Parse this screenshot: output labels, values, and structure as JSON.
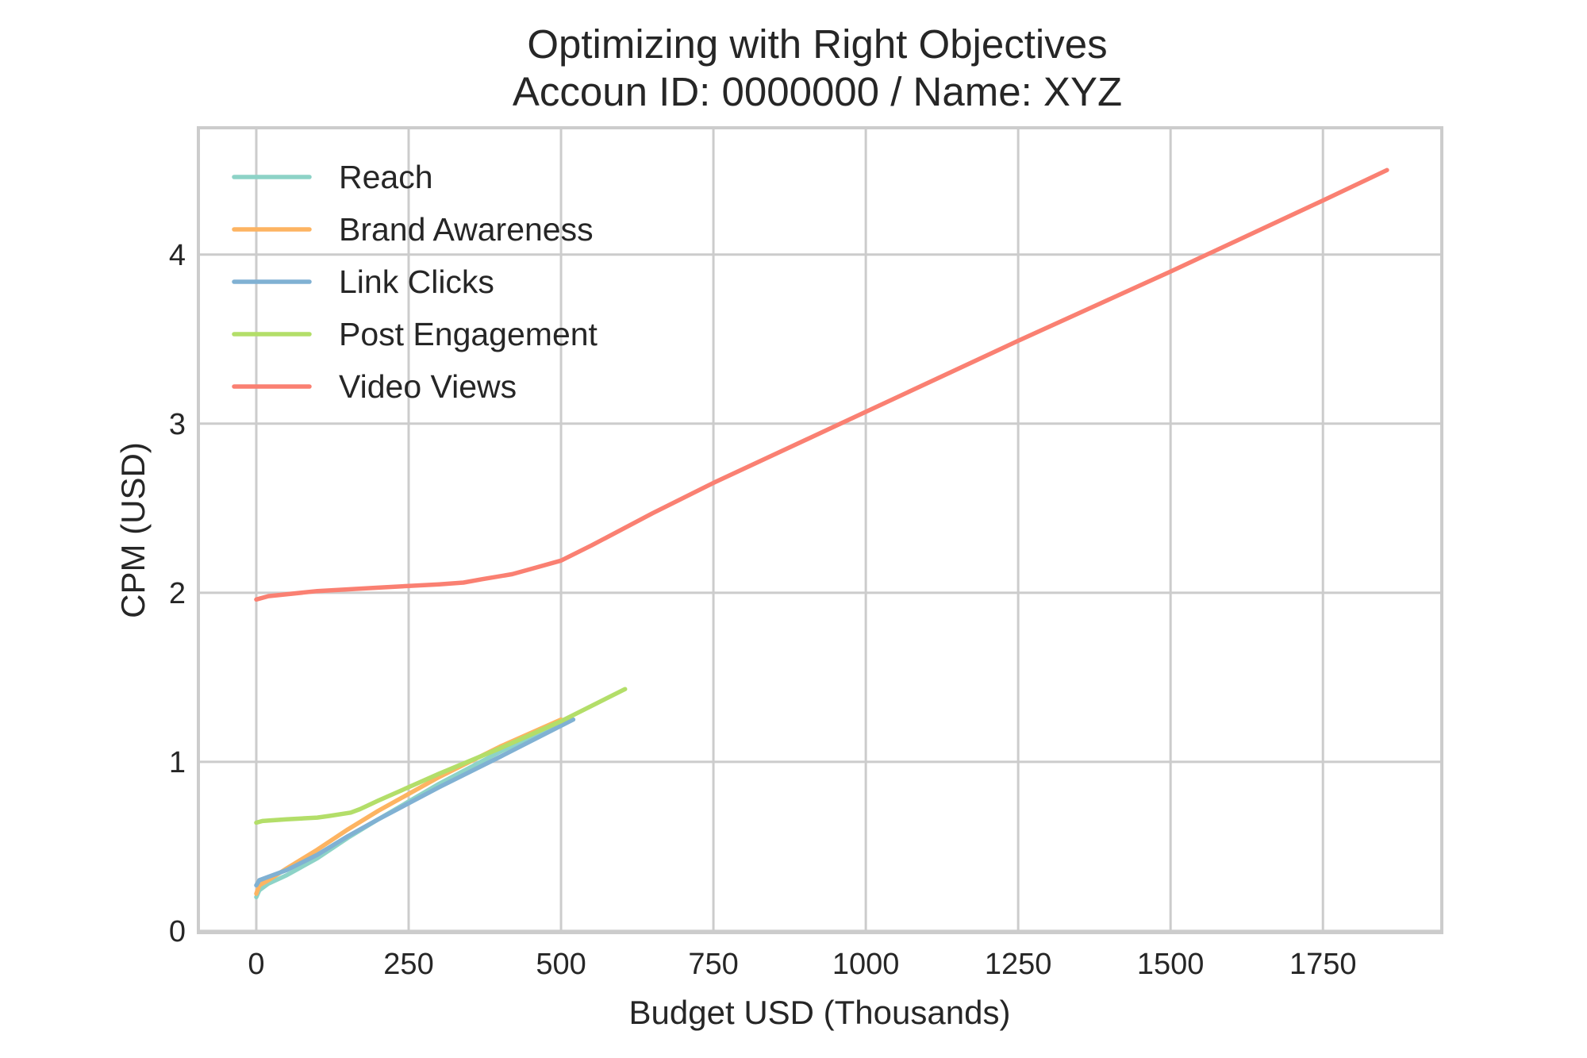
{
  "chart_data": {
    "type": "line",
    "title": "Optimizing with Right Objectives",
    "subtitle": "Accoun ID: 0000000 / Name: XYZ",
    "xlabel": "Budget USD (Thousands)",
    "ylabel": "CPM (USD)",
    "xlim": [
      -95,
      1945
    ],
    "ylim": [
      -0.01,
      4.75
    ],
    "xticks": [
      0,
      250,
      500,
      750,
      1000,
      1250,
      1500,
      1750
    ],
    "xtick_labels": [
      "0",
      "250",
      "500",
      "750",
      "1000",
      "1250",
      "1500",
      "1750"
    ],
    "yticks": [
      0,
      1,
      2,
      3,
      4
    ],
    "ytick_labels": [
      "0",
      "1",
      "2",
      "3",
      "4"
    ],
    "grid": true,
    "legend_position": "top-left",
    "series": [
      {
        "name": "Reach",
        "color": "#8dd3c7",
        "x": [
          0,
          5,
          20,
          50,
          100,
          150,
          200,
          300,
          400,
          500
        ],
        "y": [
          0.2,
          0.24,
          0.28,
          0.33,
          0.43,
          0.55,
          0.66,
          0.87,
          1.06,
          1.23
        ]
      },
      {
        "name": "Brand Awareness",
        "color": "#fdb462",
        "x": [
          0,
          5,
          20,
          50,
          100,
          150,
          200,
          300,
          400,
          500
        ],
        "y": [
          0.22,
          0.27,
          0.3,
          0.37,
          0.48,
          0.6,
          0.71,
          0.91,
          1.09,
          1.25
        ]
      },
      {
        "name": "Link Clicks",
        "color": "#80b1d3",
        "x": [
          0,
          5,
          20,
          50,
          100,
          150,
          200,
          300,
          400,
          520
        ],
        "y": [
          0.27,
          0.3,
          0.32,
          0.36,
          0.45,
          0.56,
          0.66,
          0.85,
          1.03,
          1.25
        ]
      },
      {
        "name": "Post Engagement",
        "color": "#b3de69",
        "x": [
          0,
          10,
          50,
          100,
          120,
          155,
          170,
          200,
          300,
          400,
          500,
          605
        ],
        "y": [
          0.64,
          0.65,
          0.66,
          0.67,
          0.68,
          0.7,
          0.72,
          0.77,
          0.93,
          1.08,
          1.24,
          1.43
        ]
      },
      {
        "name": "Video Views",
        "color": "#fa8072",
        "x": [
          0,
          20,
          100,
          200,
          300,
          340,
          370,
          420,
          460,
          500,
          550,
          650,
          750,
          1000,
          1250,
          1500,
          1750,
          1855
        ],
        "y": [
          1.96,
          1.98,
          2.01,
          2.03,
          2.05,
          2.06,
          2.08,
          2.11,
          2.15,
          2.19,
          2.28,
          2.47,
          2.65,
          3.07,
          3.49,
          3.9,
          4.32,
          4.5
        ]
      }
    ]
  }
}
